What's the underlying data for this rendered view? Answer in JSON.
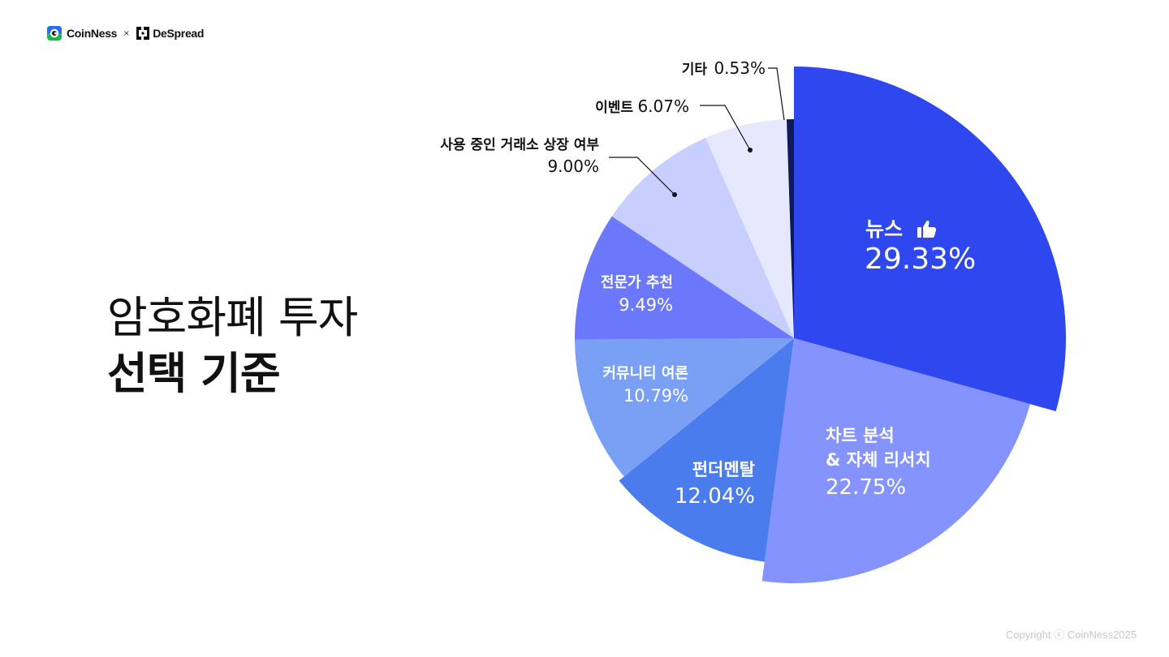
{
  "header": {
    "brand_left": "CoinNess",
    "separator": "×",
    "brand_right": "DeSpread"
  },
  "title": {
    "line1": "암호화폐 투자",
    "line2": "선택 기준"
  },
  "footer": {
    "copyright": "Copyright ⓒ CoinNess2025"
  },
  "chart_data": {
    "type": "pie",
    "unit": "%",
    "slices": [
      {
        "label": "뉴스",
        "value": 29.33,
        "display": "29.33%",
        "color": "#2e47ee",
        "icon": "thumbs-up-icon",
        "exploded": true
      },
      {
        "label": "차트 분석 & 자체 리서치",
        "value": 22.75,
        "display": "22.75%",
        "color": "#8593ff",
        "exploded": true
      },
      {
        "label": "펀더멘탈",
        "value": 12.04,
        "display": "12.04%",
        "color": "#4a7cee"
      },
      {
        "label": "커뮤니티 여론",
        "value": 10.79,
        "display": "10.79%",
        "color": "#7aa0f5"
      },
      {
        "label": "전문가 추천",
        "value": 9.49,
        "display": "9.49%",
        "color": "#6b78fb"
      },
      {
        "label": "사용 중인 거래소 상장 여부",
        "value": 9.0,
        "display": "9.00%",
        "color": "#c7cffe"
      },
      {
        "label": "이벤트",
        "value": 6.07,
        "display": "6.07%",
        "color": "#e6e9fe"
      },
      {
        "label": "기타",
        "value": 0.53,
        "display": "0.53%",
        "color": "#0e1a5c"
      }
    ]
  }
}
